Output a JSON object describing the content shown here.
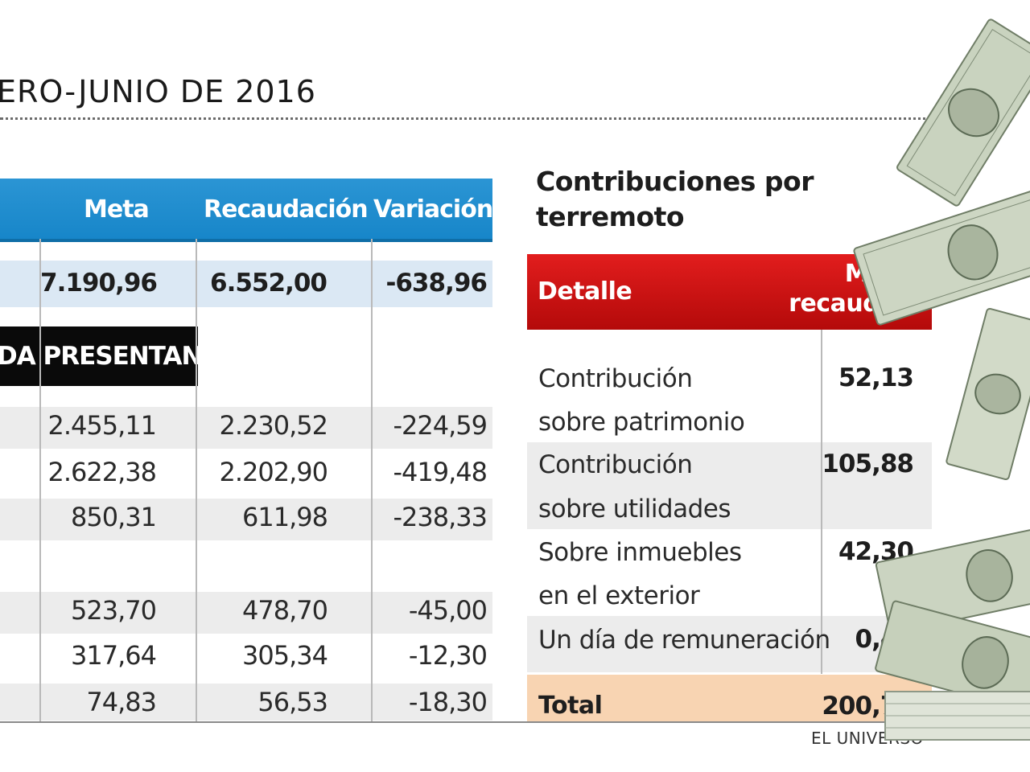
{
  "title": "ERO-JUNIO DE 2016",
  "left_table": {
    "headers": {
      "meta": "Meta",
      "recaudacion": "Recaudación",
      "variacion": "Variación"
    },
    "total_row": {
      "meta": "7.190,96",
      "recaudacion": "6.552,00",
      "variacion": "-638,96"
    },
    "section_label": "DA PRESENTAN",
    "rows": [
      {
        "meta": "2.455,11",
        "recaudacion": "2.230,52",
        "variacion": "-224,59"
      },
      {
        "meta": "2.622,38",
        "recaudacion": "2.202,90",
        "variacion": "-419,48"
      },
      {
        "meta": "850,31",
        "recaudacion": "611,98",
        "variacion": "-238,33"
      },
      {
        "meta": "523,70",
        "recaudacion": "478,70",
        "variacion": "-45,00"
      },
      {
        "meta": "317,64",
        "recaudacion": "305,34",
        "variacion": "-12,30"
      },
      {
        "meta": "74,83",
        "recaudacion": "56,53",
        "variacion": "-18,30"
      }
    ]
  },
  "right_table": {
    "title": "Contribuciones por terremoto",
    "headers": {
      "detalle": "Detalle",
      "monto": "Monto recaudado"
    },
    "rows": [
      {
        "line1": "Contribución",
        "line2": "sobre patrimonio",
        "value": "52,13"
      },
      {
        "line1": "Contribución",
        "line2": "sobre utilidades",
        "value": "105,88"
      },
      {
        "line1": "Sobre inmuebles",
        "line2": "en el exterior",
        "value": "42,30"
      },
      {
        "line1": "Un día de remuneración",
        "line2": "",
        "value": "0,40"
      }
    ],
    "total": {
      "label": "Total",
      "value": "200,71"
    }
  },
  "credit": "EL UNIVERSO",
  "colors": {
    "blue_header": "#1786c9",
    "red_header": "#c81212",
    "total_band": "#f8d4b2",
    "light_blue": "#dbe8f4"
  }
}
